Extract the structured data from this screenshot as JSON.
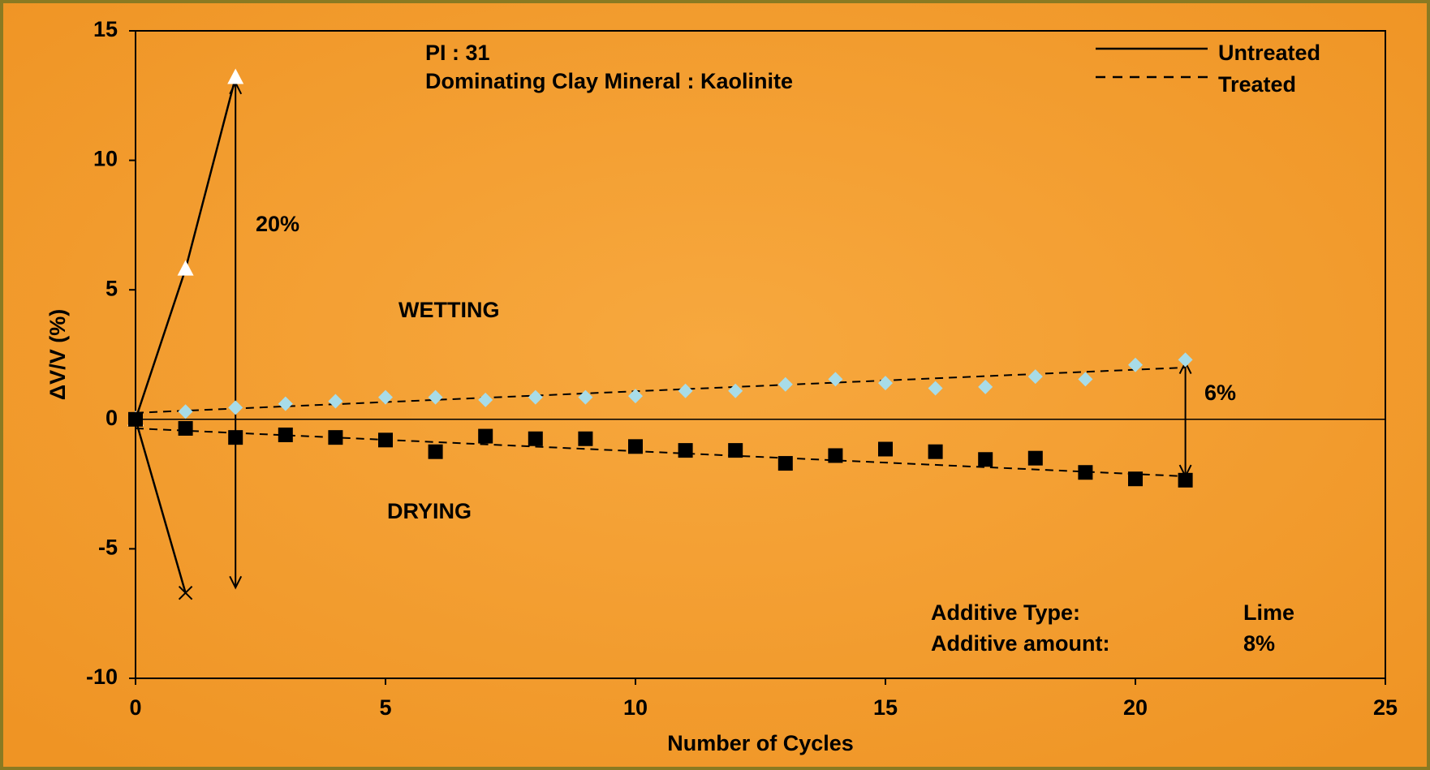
{
  "chart_data": {
    "type": "scatter",
    "xlabel": "Number of Cycles",
    "ylabel": "ΔV/V (%)",
    "xlim": [
      0,
      25
    ],
    "xticks": [
      0,
      5,
      10,
      15,
      20,
      25
    ],
    "ylim": [
      -10,
      15
    ],
    "yticks": [
      -10,
      -5,
      0,
      5,
      10,
      15
    ],
    "legend": [
      {
        "label": "Untreated",
        "style": "solid"
      },
      {
        "label": "Treated",
        "style": "dashed"
      }
    ],
    "series": [
      {
        "marker": "triangle",
        "color": "#ffffff",
        "line": "solid",
        "x": [
          0,
          1,
          2
        ],
        "values": [
          0,
          5.8,
          13.2
        ]
      },
      {
        "marker": "cross",
        "color": "#000000",
        "line": "solid",
        "x": [
          0,
          1
        ],
        "values": [
          0,
          -6.7
        ]
      },
      {
        "marker": "diamond",
        "color": "#a8dce8",
        "line": "none",
        "x": [
          0,
          1,
          2,
          3,
          4,
          5,
          6,
          7,
          8,
          9,
          10,
          11,
          12,
          13,
          14,
          15,
          16,
          17,
          18,
          19,
          20,
          21
        ],
        "values": [
          0,
          0.3,
          0.45,
          0.6,
          0.7,
          0.85,
          0.85,
          0.75,
          0.85,
          0.85,
          0.9,
          1.1,
          1.1,
          1.35,
          1.55,
          1.4,
          1.2,
          1.25,
          1.65,
          1.55,
          2.1,
          2.3
        ]
      },
      {
        "marker": "square",
        "color": "#000000",
        "line": "none",
        "x": [
          0,
          1,
          2,
          3,
          4,
          5,
          6,
          7,
          8,
          9,
          10,
          11,
          12,
          13,
          14,
          15,
          16,
          17,
          18,
          19,
          20,
          21
        ],
        "values": [
          0,
          -0.35,
          -0.7,
          -0.6,
          -0.7,
          -0.8,
          -1.25,
          -0.65,
          -0.75,
          -0.75,
          -1.05,
          -1.2,
          -1.2,
          -1.7,
          -1.4,
          -1.15,
          -1.25,
          -1.55,
          -1.5,
          -2.05,
          -2.3,
          -2.35
        ]
      }
    ],
    "trend_lines": [
      {
        "x": [
          0,
          21
        ],
        "values": [
          0.25,
          2.0
        ]
      },
      {
        "x": [
          0,
          21
        ],
        "values": [
          -0.35,
          -2.2
        ]
      }
    ],
    "arrows": [
      {
        "label": "20%",
        "x": 2,
        "from": -6.5,
        "to": 13
      },
      {
        "label": "6%",
        "x": 21,
        "from": -2.2,
        "to": 2.2
      }
    ],
    "annotations": [
      "PI : 31",
      "Dominating Clay Mineral : Kaolinite",
      "WETTING",
      "DRYING",
      "Additive Type:",
      "Lime",
      "Additive amount:",
      "8%"
    ]
  }
}
